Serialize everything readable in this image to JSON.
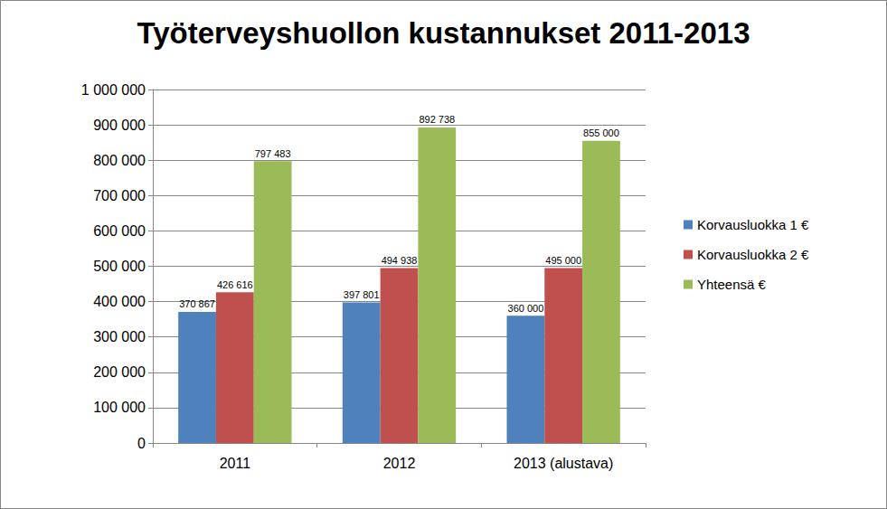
{
  "chart_data": {
    "type": "bar",
    "title": "Työterveyshuollon kustannukset 2011-2013",
    "categories": [
      "2011",
      "2012",
      "2013 (alustava)"
    ],
    "series": [
      {
        "name": "Korvausluokka 1 €",
        "color": "#4f81bd",
        "values": [
          370867,
          397801,
          360000
        ],
        "value_labels": [
          "370 867",
          "397 801",
          "360 000"
        ]
      },
      {
        "name": "Korvausluokka 2 €",
        "color": "#c0504d",
        "values": [
          426616,
          494938,
          495000
        ],
        "value_labels": [
          "426 616",
          "494 938",
          "495 000"
        ]
      },
      {
        "name": "Yhteensä €",
        "color": "#9bbb59",
        "values": [
          797483,
          892738,
          855000
        ],
        "value_labels": [
          "797 483",
          "892 738",
          "855 000"
        ]
      }
    ],
    "ylim": [
      0,
      1000000
    ],
    "yticks": [
      0,
      {
        "value": 100000,
        "label": "100 000"
      },
      {
        "value": 200000,
        "label": "200 000"
      },
      {
        "value": 300000,
        "label": "300 000"
      },
      {
        "value": 400000,
        "label": "400 000"
      },
      {
        "value": 500000,
        "label": "500 000"
      },
      {
        "value": 600000,
        "label": "600 000"
      },
      {
        "value": 700000,
        "label": "700 000"
      },
      {
        "value": 800000,
        "label": "800 000"
      },
      {
        "value": 900000,
        "label": "900 000"
      },
      {
        "value": 1000000,
        "label": "1 000 000"
      }
    ],
    "grid": true,
    "legend": "right",
    "data_labels": true
  }
}
